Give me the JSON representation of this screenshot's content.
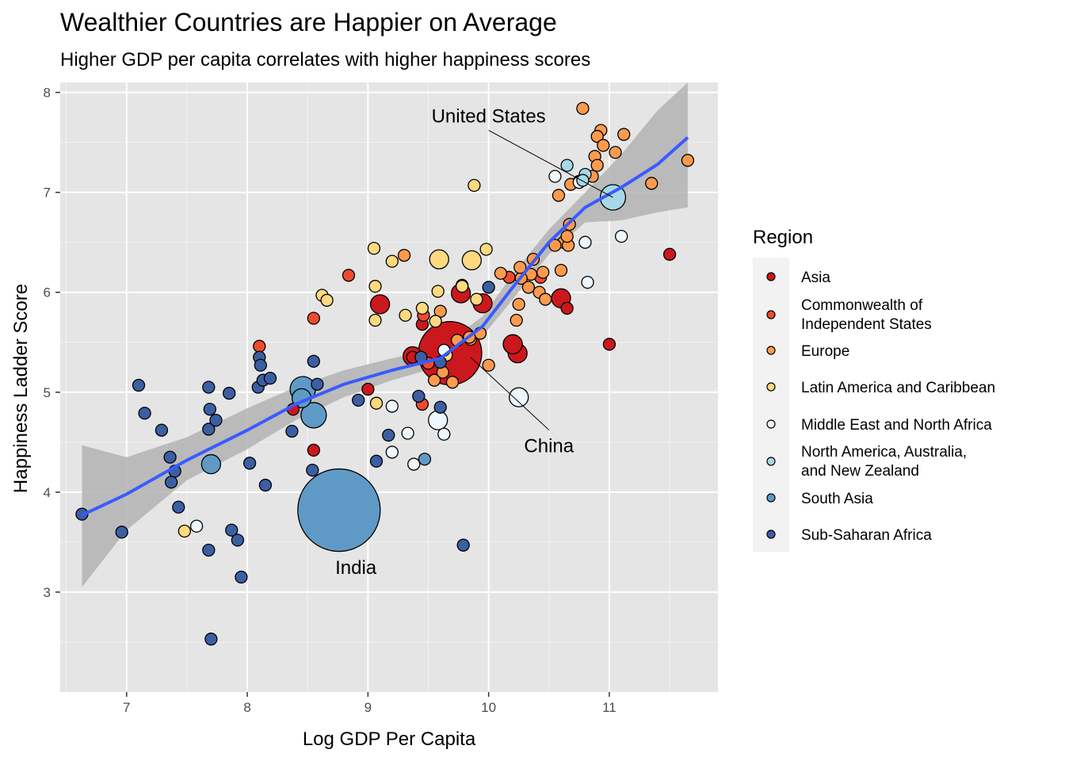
{
  "chart_data": {
    "type": "scatter",
    "title": "Wealthier Countries are Happier on Average",
    "subtitle": "Higher GDP per capita correlates with higher happiness scores",
    "xlabel": "Log GDP Per Capita",
    "ylabel": "Happiness Ladder Score",
    "xlim": [
      6.45,
      11.9
    ],
    "ylim": [
      2.0,
      8.1
    ],
    "x_ticks": [
      "7",
      "8",
      "9",
      "10",
      "11"
    ],
    "y_ticks": [
      "3",
      "4",
      "5",
      "6",
      "7",
      "8"
    ],
    "grid": true,
    "background": "#e5e5e5",
    "legend": {
      "title": "Region",
      "placement": "right",
      "entries": [
        {
          "name": "Asia",
          "color": "#cb181d"
        },
        {
          "name": "Commonwealth of\nIndependent States",
          "color": "#ef4a30"
        },
        {
          "name": "Europe",
          "color": "#fd9a4d"
        },
        {
          "name": "Latin America and Caribbean",
          "color": "#fed97f"
        },
        {
          "name": "Middle East and North Africa",
          "color": "#eef7fb"
        },
        {
          "name": "North America, Australia,\nand New Zealand",
          "color": "#a7d8e8"
        },
        {
          "name": "South Asia",
          "color": "#5f9ac7"
        },
        {
          "name": "Sub-Saharan Africa",
          "color": "#3b5fa3"
        }
      ]
    },
    "trend": {
      "method": "loess",
      "color": "#3a5bff",
      "band_color": "#b3b3b3",
      "x": [
        6.63,
        7.0,
        7.5,
        8.0,
        8.4,
        8.8,
        9.2,
        9.6,
        9.95,
        10.2,
        10.5,
        10.8,
        11.1,
        11.4,
        11.65
      ],
      "y": [
        3.77,
        3.98,
        4.32,
        4.62,
        4.88,
        5.08,
        5.22,
        5.34,
        5.66,
        6.05,
        6.5,
        6.85,
        7.05,
        7.28,
        7.55
      ],
      "lower": [
        3.05,
        3.62,
        4.12,
        4.43,
        4.72,
        4.95,
        5.12,
        5.26,
        5.56,
        5.93,
        6.38,
        6.7,
        6.72,
        6.8,
        6.85
      ],
      "upper": [
        4.47,
        4.35,
        4.55,
        4.84,
        5.05,
        5.22,
        5.34,
        5.44,
        5.76,
        6.18,
        6.63,
        7.0,
        7.38,
        7.82,
        8.1
      ]
    },
    "annotations": [
      {
        "label": "United States",
        "text_x": 10.0,
        "text_y": 7.7,
        "point_x": 11.03,
        "point_y": 6.95
      },
      {
        "label": "China",
        "text_x": 10.5,
        "text_y": 4.4,
        "point_x": 9.85,
        "point_y": 5.35
      },
      {
        "label": "India",
        "text_x": 8.9,
        "text_y": 3.18,
        "point_x": 8.76,
        "point_y": 3.82
      }
    ],
    "series": [
      {
        "region": "Asia",
        "size": [
          2,
          3,
          3,
          3,
          2,
          2,
          3,
          2,
          2,
          3,
          3,
          3,
          3,
          2,
          2,
          10,
          2
        ],
        "x": [
          9.45,
          9.95,
          9.1,
          9.77,
          9.0,
          11.5,
          10.6,
          10.65,
          9.37,
          10.2,
          9.37,
          10.24,
          10.2,
          11.0,
          8.38,
          9.68,
          8.55
        ],
        "y": [
          5.68,
          5.89,
          5.88,
          5.99,
          5.03,
          6.38,
          5.94,
          5.84,
          5.35,
          5.48,
          5.36,
          5.39,
          5.48,
          5.48,
          4.83,
          5.39,
          4.42
        ]
      },
      {
        "region": "Commonwealth of Independent States",
        "size": [
          2,
          2,
          2,
          2,
          2,
          2,
          2,
          2
        ],
        "x": [
          8.1,
          8.55,
          8.84,
          9.46,
          9.5,
          9.45,
          10.17,
          10.43
        ],
        "y": [
          5.46,
          5.74,
          6.17,
          5.77,
          5.29,
          4.88,
          6.15,
          6.15
        ]
      },
      {
        "region": "Europe",
        "size": [
          2,
          2,
          2,
          2,
          2,
          2,
          2,
          2,
          2,
          2,
          2,
          2,
          2,
          2,
          2,
          2,
          2,
          2,
          2,
          2,
          2,
          2,
          2,
          2,
          2,
          2,
          2,
          2,
          2,
          2,
          2,
          2,
          2,
          2,
          2,
          2,
          2,
          2,
          2,
          2,
          2,
          2
        ],
        "x": [
          10.78,
          10.93,
          10.9,
          10.95,
          10.88,
          11.12,
          11.05,
          10.86,
          10.9,
          10.75,
          10.68,
          10.58,
          11.35,
          11.65,
          10.62,
          10.66,
          10.55,
          10.45,
          10.6,
          10.67,
          10.37,
          10.35,
          10.42,
          10.47,
          10.27,
          10.33,
          10.25,
          10.23,
          9.3,
          9.6,
          9.85,
          9.78,
          9.93,
          10.0,
          9.55,
          9.7,
          9.62,
          9.74,
          9.84,
          10.1,
          10.26,
          10.65
        ],
        "y": [
          7.84,
          7.62,
          7.56,
          7.47,
          7.36,
          7.58,
          7.4,
          7.16,
          7.27,
          7.11,
          7.08,
          6.97,
          7.09,
          7.32,
          6.5,
          6.47,
          6.47,
          6.2,
          6.22,
          6.68,
          6.33,
          6.18,
          6.0,
          5.93,
          6.14,
          6.05,
          5.88,
          5.72,
          6.37,
          5.81,
          5.53,
          6.07,
          5.59,
          5.27,
          5.12,
          5.1,
          5.2,
          5.52,
          5.55,
          6.19,
          6.25,
          6.56
        ]
      },
      {
        "region": "Latin America and Caribbean",
        "size": [
          2,
          2,
          2,
          2,
          2,
          2,
          2,
          2,
          2,
          2,
          2,
          3,
          3,
          2,
          2,
          2,
          2,
          2,
          2
        ],
        "x": [
          9.88,
          9.05,
          9.2,
          9.06,
          8.62,
          8.66,
          9.98,
          9.78,
          9.9,
          9.06,
          9.45,
          9.59,
          9.86,
          9.58,
          9.31,
          9.56,
          9.07,
          7.48,
          9.65
        ],
        "y": [
          7.07,
          6.44,
          6.31,
          6.06,
          5.97,
          5.92,
          6.43,
          6.06,
          5.93,
          5.72,
          5.84,
          6.33,
          6.32,
          6.01,
          5.77,
          5.71,
          4.89,
          3.61,
          5.37
        ]
      },
      {
        "region": "Middle East and North Africa",
        "size": [
          2,
          2,
          2,
          2,
          2,
          3,
          2,
          3,
          2,
          2,
          2,
          2,
          2,
          2
        ],
        "x": [
          10.55,
          10.75,
          10.8,
          11.1,
          10.82,
          10.25,
          9.63,
          9.58,
          9.63,
          9.2,
          9.2,
          9.33,
          9.38,
          7.58
        ],
        "y": [
          7.16,
          7.1,
          6.5,
          6.56,
          6.1,
          4.95,
          5.42,
          4.72,
          4.58,
          4.86,
          4.4,
          4.59,
          4.28,
          3.66
        ]
      },
      {
        "region": "North America, Australia, and New Zealand",
        "size": [
          2,
          2,
          2,
          4
        ],
        "x": [
          10.65,
          10.8,
          10.78,
          11.03
        ],
        "y": [
          7.27,
          7.18,
          7.12,
          6.95
        ]
      },
      {
        "region": "South Asia",
        "size": [
          3,
          4,
          4,
          3,
          2,
          13
        ],
        "x": [
          8.45,
          8.46,
          8.55,
          7.7,
          9.47,
          8.76
        ],
        "y": [
          4.94,
          5.03,
          4.77,
          4.28,
          4.33,
          3.82
        ]
      },
      {
        "region": "Sub-Saharan Africa",
        "size": [
          2,
          2,
          2,
          2,
          2,
          2,
          2,
          2,
          2,
          2,
          2,
          2,
          2,
          2,
          2,
          2,
          2,
          2,
          2,
          2,
          2,
          2,
          2,
          2,
          2,
          2,
          2,
          2,
          2,
          2,
          2,
          2,
          2,
          2,
          2,
          2,
          2,
          2,
          2
        ],
        "x": [
          6.63,
          6.96,
          7.1,
          7.15,
          7.29,
          7.36,
          7.37,
          7.4,
          7.43,
          7.68,
          7.68,
          7.69,
          7.68,
          7.74,
          7.85,
          7.87,
          7.92,
          7.95,
          8.02,
          8.09,
          8.1,
          8.11,
          8.13,
          8.15,
          8.19,
          8.37,
          8.55,
          8.58,
          8.54,
          9.07,
          9.17,
          9.42,
          9.6,
          9.79,
          10.0,
          9.44,
          8.92,
          7.7,
          9.6
        ],
        "y": [
          3.78,
          3.6,
          5.07,
          4.79,
          4.62,
          4.35,
          4.1,
          4.21,
          3.85,
          3.42,
          4.63,
          4.83,
          5.05,
          4.72,
          4.99,
          3.62,
          3.52,
          3.15,
          4.29,
          5.05,
          5.35,
          5.27,
          5.12,
          4.07,
          5.14,
          4.61,
          5.31,
          5.08,
          4.22,
          4.31,
          4.57,
          4.96,
          4.85,
          3.47,
          6.05,
          5.35,
          4.92,
          2.53,
          5.3
        ]
      }
    ]
  }
}
